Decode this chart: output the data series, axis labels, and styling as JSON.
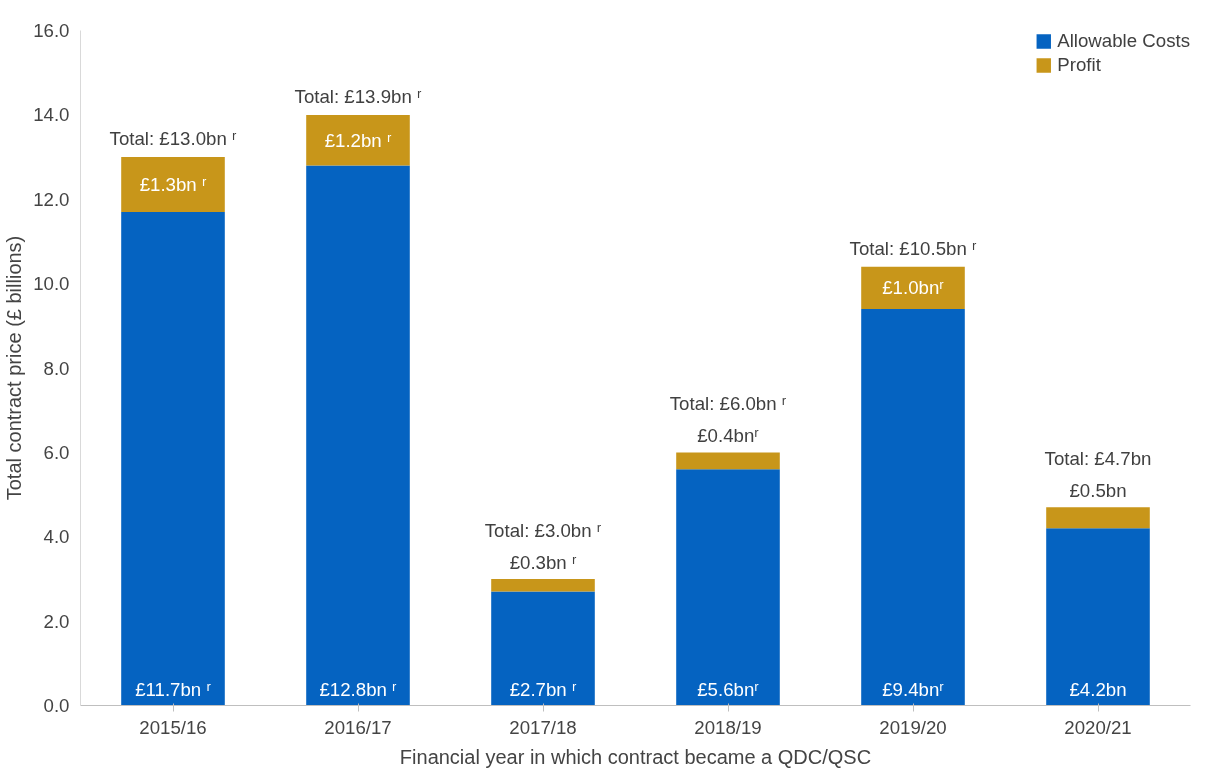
{
  "chart_data": {
    "type": "bar",
    "stacked": true,
    "xlabel": "Financial year in which contract became a QDC/QSC",
    "ylabel": "Total contract price (£ billions)",
    "categories": [
      "2015/16",
      "2016/17",
      "2017/18",
      "2018/19",
      "2019/20",
      "2020/21"
    ],
    "series": [
      {
        "name": "Allowable Costs",
        "color": "#0563c1",
        "values": [
          11.7,
          12.8,
          2.7,
          5.6,
          9.4,
          4.2
        ],
        "value_labels": [
          "£11.7bn ʳ",
          "£12.8bn ʳ",
          "£2.7bn ʳ",
          "£5.6bnʳ",
          "£9.4bnʳ",
          "£4.2bn"
        ]
      },
      {
        "name": "Profit",
        "color": "#c8961a",
        "values": [
          1.3,
          1.2,
          0.3,
          0.4,
          1.0,
          0.5
        ],
        "value_labels": [
          "£1.3bn ʳ",
          "£1.2bn ʳ",
          "£0.3bn ʳ",
          "£0.4bnʳ",
          "£1.0bnʳ",
          "£0.5bn"
        ]
      }
    ],
    "totals": [
      "Total: £13.0bn ʳ",
      "Total: £13.9bn ʳ",
      "Total: £3.0bn ʳ",
      "Total: £6.0bn ʳ",
      "Total: £10.5bn ʳ",
      "Total: £4.7bn"
    ],
    "ylim": [
      0,
      16
    ],
    "yticks": [
      {
        "value": 0,
        "label": "0.0"
      },
      {
        "value": 2,
        "label": "2.0"
      },
      {
        "value": 4,
        "label": "4.0"
      },
      {
        "value": 6,
        "label": "6.0"
      },
      {
        "value": 8,
        "label": "8.0"
      },
      {
        "value": 10,
        "label": "10.0"
      },
      {
        "value": 12,
        "label": "12.0"
      },
      {
        "value": 14,
        "label": "14.0"
      },
      {
        "value": 16,
        "label": "16.0"
      }
    ],
    "grid": false,
    "legend": "top right"
  }
}
